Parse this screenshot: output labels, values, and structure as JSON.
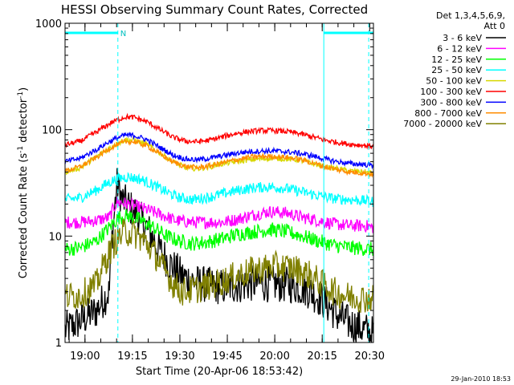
{
  "chart_data": {
    "type": "line",
    "title": "HESSI Observing Summary Count Rates, Corrected",
    "xlabel": "Start Time (20-Apr-06 18:53:42)",
    "ylabel_main": "Corrected Count Rate (s",
    "ylabel_sup1": "-1",
    "ylabel_mid": " detector",
    "ylabel_sup2": "-1",
    "ylabel_end": ")",
    "yscale": "log",
    "ylim": [
      1,
      1000
    ],
    "xlim_minutes_after_start": [
      0,
      97.5
    ],
    "x_start": "18:53:42",
    "yticks": [
      "1",
      "10",
      "100",
      "1000"
    ],
    "xticks": [
      {
        "label": "19:00",
        "t": 6.3
      },
      {
        "label": "19:15",
        "t": 21.3
      },
      {
        "label": "19:30",
        "t": 36.3
      },
      {
        "label": "19:45",
        "t": 51.3
      },
      {
        "label": "20:00",
        "t": 66.3
      },
      {
        "label": "20:15",
        "t": 81.3
      },
      {
        "label": "20:30",
        "t": 96.3
      }
    ],
    "annotations": {
      "bar_marker": "N",
      "dashed_lines_t": [
        16.7,
        96.0
      ],
      "solid_lines_t": [
        81.8
      ],
      "night_bars": [
        [
          0,
          16.7
        ],
        [
          81.8,
          97.5
        ]
      ]
    },
    "legend_title_1": "Det 1,3,4,5,6,9,",
    "legend_title_2": "Att 0",
    "legend_position": "top-right",
    "series": [
      {
        "name": "3 - 6 keV",
        "color": "#000000",
        "key": "s1",
        "points": [
          [
            0,
            1.3
          ],
          [
            5,
            1.6
          ],
          [
            10,
            2.0
          ],
          [
            14,
            3.0
          ],
          [
            15.5,
            15
          ],
          [
            16.5,
            31
          ],
          [
            18,
            22
          ],
          [
            21,
            18
          ],
          [
            25,
            13
          ],
          [
            29,
            8
          ],
          [
            33,
            5.5
          ],
          [
            37,
            4.2
          ],
          [
            42,
            3.6
          ],
          [
            50,
            3.3
          ],
          [
            60,
            3.6
          ],
          [
            70,
            3.5
          ],
          [
            76,
            3.2
          ],
          [
            82,
            2.4
          ],
          [
            86,
            1.8
          ],
          [
            90,
            1.5
          ],
          [
            95,
            1.3
          ],
          [
            97.5,
            1.2
          ]
        ]
      },
      {
        "name": "6 - 12 keV",
        "color": "#ff00ff",
        "key": "s2",
        "points": [
          [
            0,
            13.5
          ],
          [
            5,
            13.5
          ],
          [
            10,
            14
          ],
          [
            14,
            15
          ],
          [
            16.5,
            21
          ],
          [
            20,
            20
          ],
          [
            25,
            18
          ],
          [
            30,
            16
          ],
          [
            35,
            14
          ],
          [
            40,
            13.5
          ],
          [
            45,
            13.5
          ],
          [
            50,
            13.5
          ],
          [
            55,
            14.5
          ],
          [
            60,
            16
          ],
          [
            65,
            17
          ],
          [
            70,
            16.5
          ],
          [
            75,
            15
          ],
          [
            80,
            14
          ],
          [
            85,
            13
          ],
          [
            90,
            12.5
          ],
          [
            95,
            12.5
          ],
          [
            97.5,
            12
          ]
        ]
      },
      {
        "name": "12 - 25 keV",
        "color": "#00ff00",
        "key": "s3",
        "points": [
          [
            0,
            7.5
          ],
          [
            5,
            7.8
          ],
          [
            10,
            9
          ],
          [
            14,
            12
          ],
          [
            17,
            15
          ],
          [
            20,
            15.5
          ],
          [
            24,
            14
          ],
          [
            28,
            12
          ],
          [
            32,
            10
          ],
          [
            36,
            9
          ],
          [
            40,
            8.5
          ],
          [
            45,
            8.8
          ],
          [
            50,
            9.5
          ],
          [
            55,
            10.5
          ],
          [
            60,
            11
          ],
          [
            65,
            11.5
          ],
          [
            70,
            11
          ],
          [
            75,
            10
          ],
          [
            80,
            9
          ],
          [
            85,
            8.2
          ],
          [
            90,
            7.8
          ],
          [
            95,
            7.6
          ],
          [
            97.5,
            7.5
          ]
        ]
      },
      {
        "name": "25 - 50 keV",
        "color": "#00ffff",
        "key": "s4",
        "points": [
          [
            0,
            22
          ],
          [
            5,
            23
          ],
          [
            10,
            27
          ],
          [
            14,
            32
          ],
          [
            17,
            35
          ],
          [
            20,
            36
          ],
          [
            24,
            34
          ],
          [
            28,
            30
          ],
          [
            32,
            26
          ],
          [
            36,
            23
          ],
          [
            40,
            22
          ],
          [
            45,
            23
          ],
          [
            50,
            25
          ],
          [
            55,
            27
          ],
          [
            60,
            28.5
          ],
          [
            65,
            29
          ],
          [
            70,
            28
          ],
          [
            75,
            26
          ],
          [
            80,
            24
          ],
          [
            85,
            22.5
          ],
          [
            90,
            22
          ],
          [
            95,
            21.5
          ],
          [
            97.5,
            21
          ]
        ]
      },
      {
        "name": "50 - 100 keV",
        "color": "#d8d800",
        "key": "s5",
        "points": [
          [
            0,
            40
          ],
          [
            5,
            44
          ],
          [
            10,
            55
          ],
          [
            15,
            70
          ],
          [
            19,
            80
          ],
          [
            22,
            80
          ],
          [
            26,
            72
          ],
          [
            30,
            60
          ],
          [
            34,
            50
          ],
          [
            38,
            44
          ],
          [
            42,
            43
          ],
          [
            46,
            45
          ],
          [
            50,
            48
          ],
          [
            54,
            50
          ],
          [
            58,
            52
          ],
          [
            62,
            53
          ],
          [
            66,
            54
          ],
          [
            70,
            53
          ],
          [
            74,
            52
          ],
          [
            78,
            48
          ],
          [
            82,
            45
          ],
          [
            86,
            43
          ],
          [
            90,
            41
          ],
          [
            95,
            40
          ],
          [
            97.5,
            39
          ]
        ]
      },
      {
        "name": "100 - 300 keV",
        "color": "#ff0000",
        "key": "s6",
        "points": [
          [
            0,
            72
          ],
          [
            5,
            78
          ],
          [
            10,
            95
          ],
          [
            15,
            118
          ],
          [
            19,
            132
          ],
          [
            22,
            130
          ],
          [
            26,
            118
          ],
          [
            30,
            100
          ],
          [
            34,
            85
          ],
          [
            38,
            78
          ],
          [
            42,
            77
          ],
          [
            46,
            80
          ],
          [
            50,
            86
          ],
          [
            54,
            92
          ],
          [
            58,
            96
          ],
          [
            62,
            98
          ],
          [
            66,
            98
          ],
          [
            70,
            96
          ],
          [
            74,
            92
          ],
          [
            78,
            86
          ],
          [
            82,
            80
          ],
          [
            86,
            76
          ],
          [
            90,
            73
          ],
          [
            95,
            71
          ],
          [
            97.5,
            70
          ]
        ]
      },
      {
        "name": "300 - 800 keV",
        "color": "#0000ff",
        "key": "s7",
        "points": [
          [
            0,
            50
          ],
          [
            5,
            54
          ],
          [
            10,
            65
          ],
          [
            15,
            80
          ],
          [
            19,
            89
          ],
          [
            22,
            88
          ],
          [
            26,
            80
          ],
          [
            30,
            68
          ],
          [
            34,
            58
          ],
          [
            38,
            53
          ],
          [
            42,
            52
          ],
          [
            46,
            54
          ],
          [
            50,
            57
          ],
          [
            54,
            60
          ],
          [
            58,
            62
          ],
          [
            62,
            63
          ],
          [
            66,
            63
          ],
          [
            70,
            62
          ],
          [
            74,
            60
          ],
          [
            78,
            57
          ],
          [
            82,
            53
          ],
          [
            86,
            50
          ],
          [
            90,
            48
          ],
          [
            95,
            47
          ],
          [
            97.5,
            46
          ]
        ]
      },
      {
        "name": "800 - 7000 keV",
        "color": "#ff8c00",
        "key": "s8",
        "points": [
          [
            0,
            41
          ],
          [
            5,
            45
          ],
          [
            10,
            55
          ],
          [
            15,
            69
          ],
          [
            19,
            77
          ],
          [
            22,
            77
          ],
          [
            26,
            70
          ],
          [
            30,
            59
          ],
          [
            34,
            50
          ],
          [
            38,
            45
          ],
          [
            42,
            44
          ],
          [
            46,
            46
          ],
          [
            50,
            49
          ],
          [
            54,
            52
          ],
          [
            58,
            55
          ],
          [
            62,
            56
          ],
          [
            66,
            56
          ],
          [
            70,
            55
          ],
          [
            74,
            53
          ],
          [
            78,
            49
          ],
          [
            82,
            45
          ],
          [
            86,
            42
          ],
          [
            90,
            40
          ],
          [
            95,
            39
          ],
          [
            97.5,
            38
          ]
        ]
      },
      {
        "name": "7000 - 20000 keV",
        "color": "#808000",
        "key": "s9",
        "points": [
          [
            0,
            2.7
          ],
          [
            5,
            2.8
          ],
          [
            10,
            3.5
          ],
          [
            13,
            6
          ],
          [
            16,
            9
          ],
          [
            19,
            11
          ],
          [
            22,
            10.5
          ],
          [
            25,
            9
          ],
          [
            28,
            7
          ],
          [
            31,
            5
          ],
          [
            34,
            3.6
          ],
          [
            37,
            3.0
          ],
          [
            42,
            3.2
          ],
          [
            48,
            3.6
          ],
          [
            54,
            4.2
          ],
          [
            60,
            4.8
          ],
          [
            66,
            5.2
          ],
          [
            72,
            5.0
          ],
          [
            78,
            4.2
          ],
          [
            82,
            3.4
          ],
          [
            86,
            2.9
          ],
          [
            90,
            2.7
          ],
          [
            95,
            2.6
          ],
          [
            97.5,
            2.6
          ]
        ]
      }
    ]
  },
  "footer_date": "29-Jan-2010 18:53"
}
